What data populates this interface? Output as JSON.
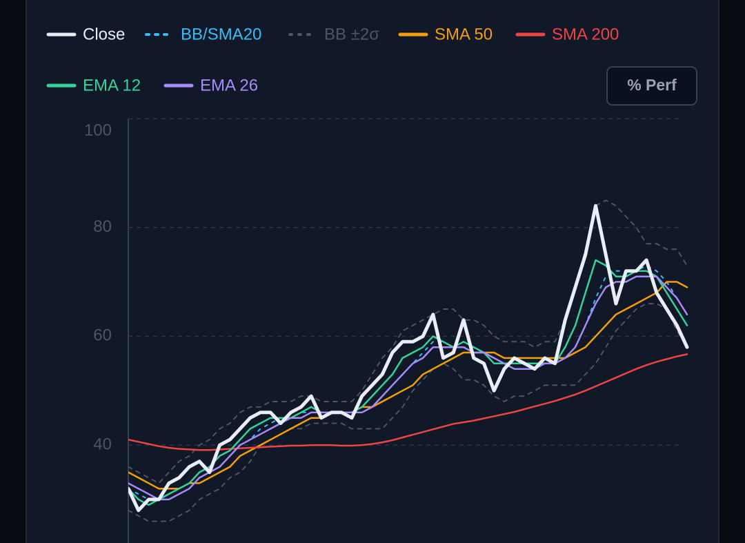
{
  "controls": {
    "perf_button": "% Perf"
  },
  "chart_data": {
    "type": "line",
    "ylim": [
      22,
      100
    ],
    "yticks": [
      40,
      60,
      80,
      100
    ],
    "grid": true,
    "series": [
      {
        "name": "Close",
        "color": "#e8edf6",
        "style": "solid",
        "width": 5,
        "values": [
          32,
          28,
          30,
          30,
          33,
          34,
          36,
          37,
          35,
          40,
          41,
          43,
          45,
          46,
          46,
          44,
          46,
          47,
          49,
          45,
          46,
          46,
          45,
          49,
          51,
          53,
          57,
          59,
          59,
          60,
          64,
          56,
          57,
          63,
          56,
          55,
          50,
          54,
          56,
          55,
          54,
          56,
          55,
          63,
          69,
          75,
          84,
          75,
          66,
          72,
          72,
          74,
          68,
          65,
          62,
          58
        ]
      },
      {
        "name": "BB/SMA20",
        "color": "#38bdf8",
        "style": "dotted",
        "width": 2,
        "values": [
          32,
          31,
          30,
          30,
          30,
          31,
          32,
          34,
          35,
          36,
          38,
          40,
          41,
          43,
          44,
          45,
          45,
          46,
          46,
          46,
          46,
          46,
          46,
          46,
          47,
          49,
          51,
          53,
          55,
          57,
          59,
          59,
          58,
          58,
          58,
          57,
          56,
          55,
          54,
          54,
          54,
          55,
          55,
          56,
          58,
          62,
          67,
          71,
          72,
          72,
          72,
          73,
          72,
          70,
          67,
          64
        ]
      },
      {
        "name": "BB ±2σ",
        "color": "#4b5563",
        "style": "dashed",
        "width": 2,
        "upper": [
          36,
          35,
          34,
          33,
          35,
          37,
          38,
          40,
          41,
          43,
          44,
          46,
          47,
          47,
          48,
          48,
          48,
          49,
          49,
          48,
          48,
          48,
          48,
          50,
          53,
          56,
          58,
          61,
          62,
          63,
          64,
          65,
          65,
          63,
          63,
          62,
          60,
          59,
          59,
          59,
          58,
          59,
          59,
          63,
          69,
          76,
          84,
          85,
          84,
          82,
          80,
          77,
          77,
          76,
          76,
          73
        ],
        "lower": [
          28,
          27,
          26,
          26,
          26,
          27,
          28,
          30,
          31,
          32,
          34,
          35,
          37,
          40,
          41,
          42,
          43,
          43,
          44,
          44,
          44,
          44,
          43,
          43,
          43,
          43,
          45,
          47,
          50,
          52,
          54,
          55,
          54,
          52,
          52,
          51,
          49,
          48,
          49,
          49,
          50,
          51,
          51,
          51,
          51,
          53,
          55,
          58,
          61,
          63,
          65,
          66,
          66,
          65,
          61,
          58
        ]
      },
      {
        "name": "SMA 50",
        "color": "#f59e0b",
        "style": "solid",
        "width": 2.5,
        "values": [
          35,
          34,
          33,
          32,
          32,
          32,
          33,
          33,
          34,
          35,
          36,
          38,
          39,
          40,
          41,
          42,
          43,
          44,
          45,
          45,
          46,
          46,
          46,
          47,
          47,
          48,
          49,
          50,
          51,
          53,
          54,
          55,
          56,
          57,
          57,
          57,
          57,
          56,
          56,
          56,
          56,
          56,
          56,
          56,
          57,
          58,
          60,
          62,
          64,
          65,
          66,
          67,
          68,
          70,
          70,
          69
        ]
      },
      {
        "name": "SMA 200",
        "color": "#ef4444",
        "style": "solid",
        "width": 2.5,
        "values": [
          41,
          40.6,
          40.2,
          39.8,
          39.5,
          39.3,
          39.2,
          39.1,
          39.1,
          39.2,
          39.3,
          39.4,
          39.5,
          39.6,
          39.7,
          39.8,
          39.9,
          39.9,
          40,
          40,
          40,
          39.9,
          39.9,
          40,
          40.2,
          40.5,
          40.9,
          41.4,
          41.9,
          42.4,
          42.9,
          43.4,
          43.9,
          44.2,
          44.5,
          44.9,
          45.3,
          45.7,
          46.1,
          46.6,
          47.1,
          47.6,
          48.1,
          48.7,
          49.3,
          50,
          50.8,
          51.6,
          52.4,
          53.2,
          54,
          54.7,
          55.3,
          55.8,
          56.3,
          56.7
        ]
      },
      {
        "name": "EMA 12",
        "color": "#34d399",
        "style": "solid",
        "width": 2.5,
        "values": [
          32,
          30,
          29,
          30,
          31,
          32,
          33,
          35,
          36,
          38,
          39,
          41,
          43,
          44,
          45,
          45,
          45,
          46,
          47,
          46,
          46,
          46,
          46,
          47,
          49,
          51,
          53,
          56,
          57,
          58,
          60,
          59,
          58,
          59,
          58,
          57,
          55,
          55,
          55,
          55,
          55,
          55,
          55,
          58,
          62,
          68,
          74,
          73,
          71,
          71,
          72,
          72,
          71,
          68,
          65,
          62
        ]
      },
      {
        "name": "EMA 26",
        "color": "#a78bfa",
        "style": "solid",
        "width": 2.5,
        "values": [
          33,
          32,
          31,
          30,
          30,
          31,
          32,
          34,
          35,
          36,
          38,
          40,
          41,
          42,
          43,
          44,
          45,
          45,
          46,
          46,
          46,
          46,
          46,
          46,
          47,
          49,
          51,
          53,
          55,
          56,
          58,
          58,
          58,
          58,
          57,
          57,
          56,
          55,
          54,
          54,
          54,
          55,
          55,
          56,
          58,
          62,
          66,
          69,
          70,
          70,
          71,
          71,
          71,
          69,
          67,
          64
        ]
      }
    ]
  }
}
